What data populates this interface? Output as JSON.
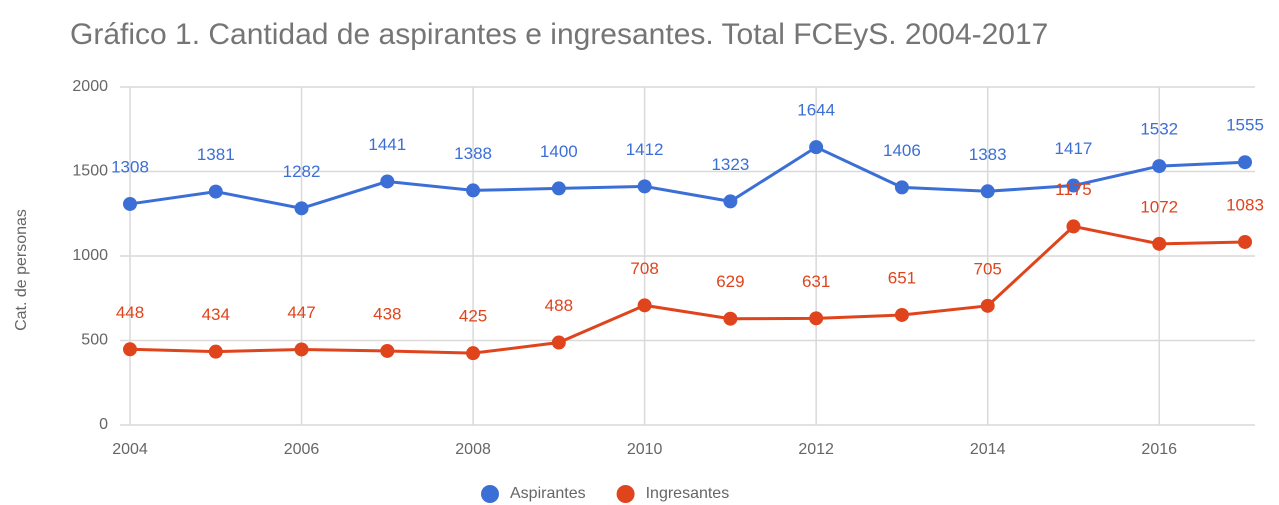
{
  "chart_data": {
    "type": "line",
    "title": "Gráfico 1. Cantidad de aspirantes e ingresantes. Total FCEyS. 2004-2017",
    "y_label": "Cat. de personas",
    "x": [
      2004,
      2005,
      2006,
      2007,
      2008,
      2009,
      2010,
      2011,
      2012,
      2013,
      2014,
      2015,
      2016,
      2017
    ],
    "series": [
      {
        "name": "Aspirantes",
        "color": "#3c6fd6",
        "values": [
          1308,
          1381,
          1282,
          1441,
          1388,
          1400,
          1412,
          1323,
          1644,
          1406,
          1383,
          1417,
          1532,
          1555
        ]
      },
      {
        "name": "Ingresantes",
        "color": "#e0441c",
        "values": [
          448,
          434,
          447,
          438,
          425,
          488,
          708,
          629,
          631,
          651,
          705,
          1175,
          1072,
          1083
        ]
      }
    ],
    "xlim": [
      2004,
      2017
    ],
    "xticks": [
      2004,
      2006,
      2008,
      2010,
      2012,
      2014,
      2016
    ],
    "ylim": [
      0,
      2000
    ],
    "yticks": [
      0,
      500,
      1000,
      1500,
      2000
    ],
    "grid": true,
    "legend": "bottom"
  }
}
